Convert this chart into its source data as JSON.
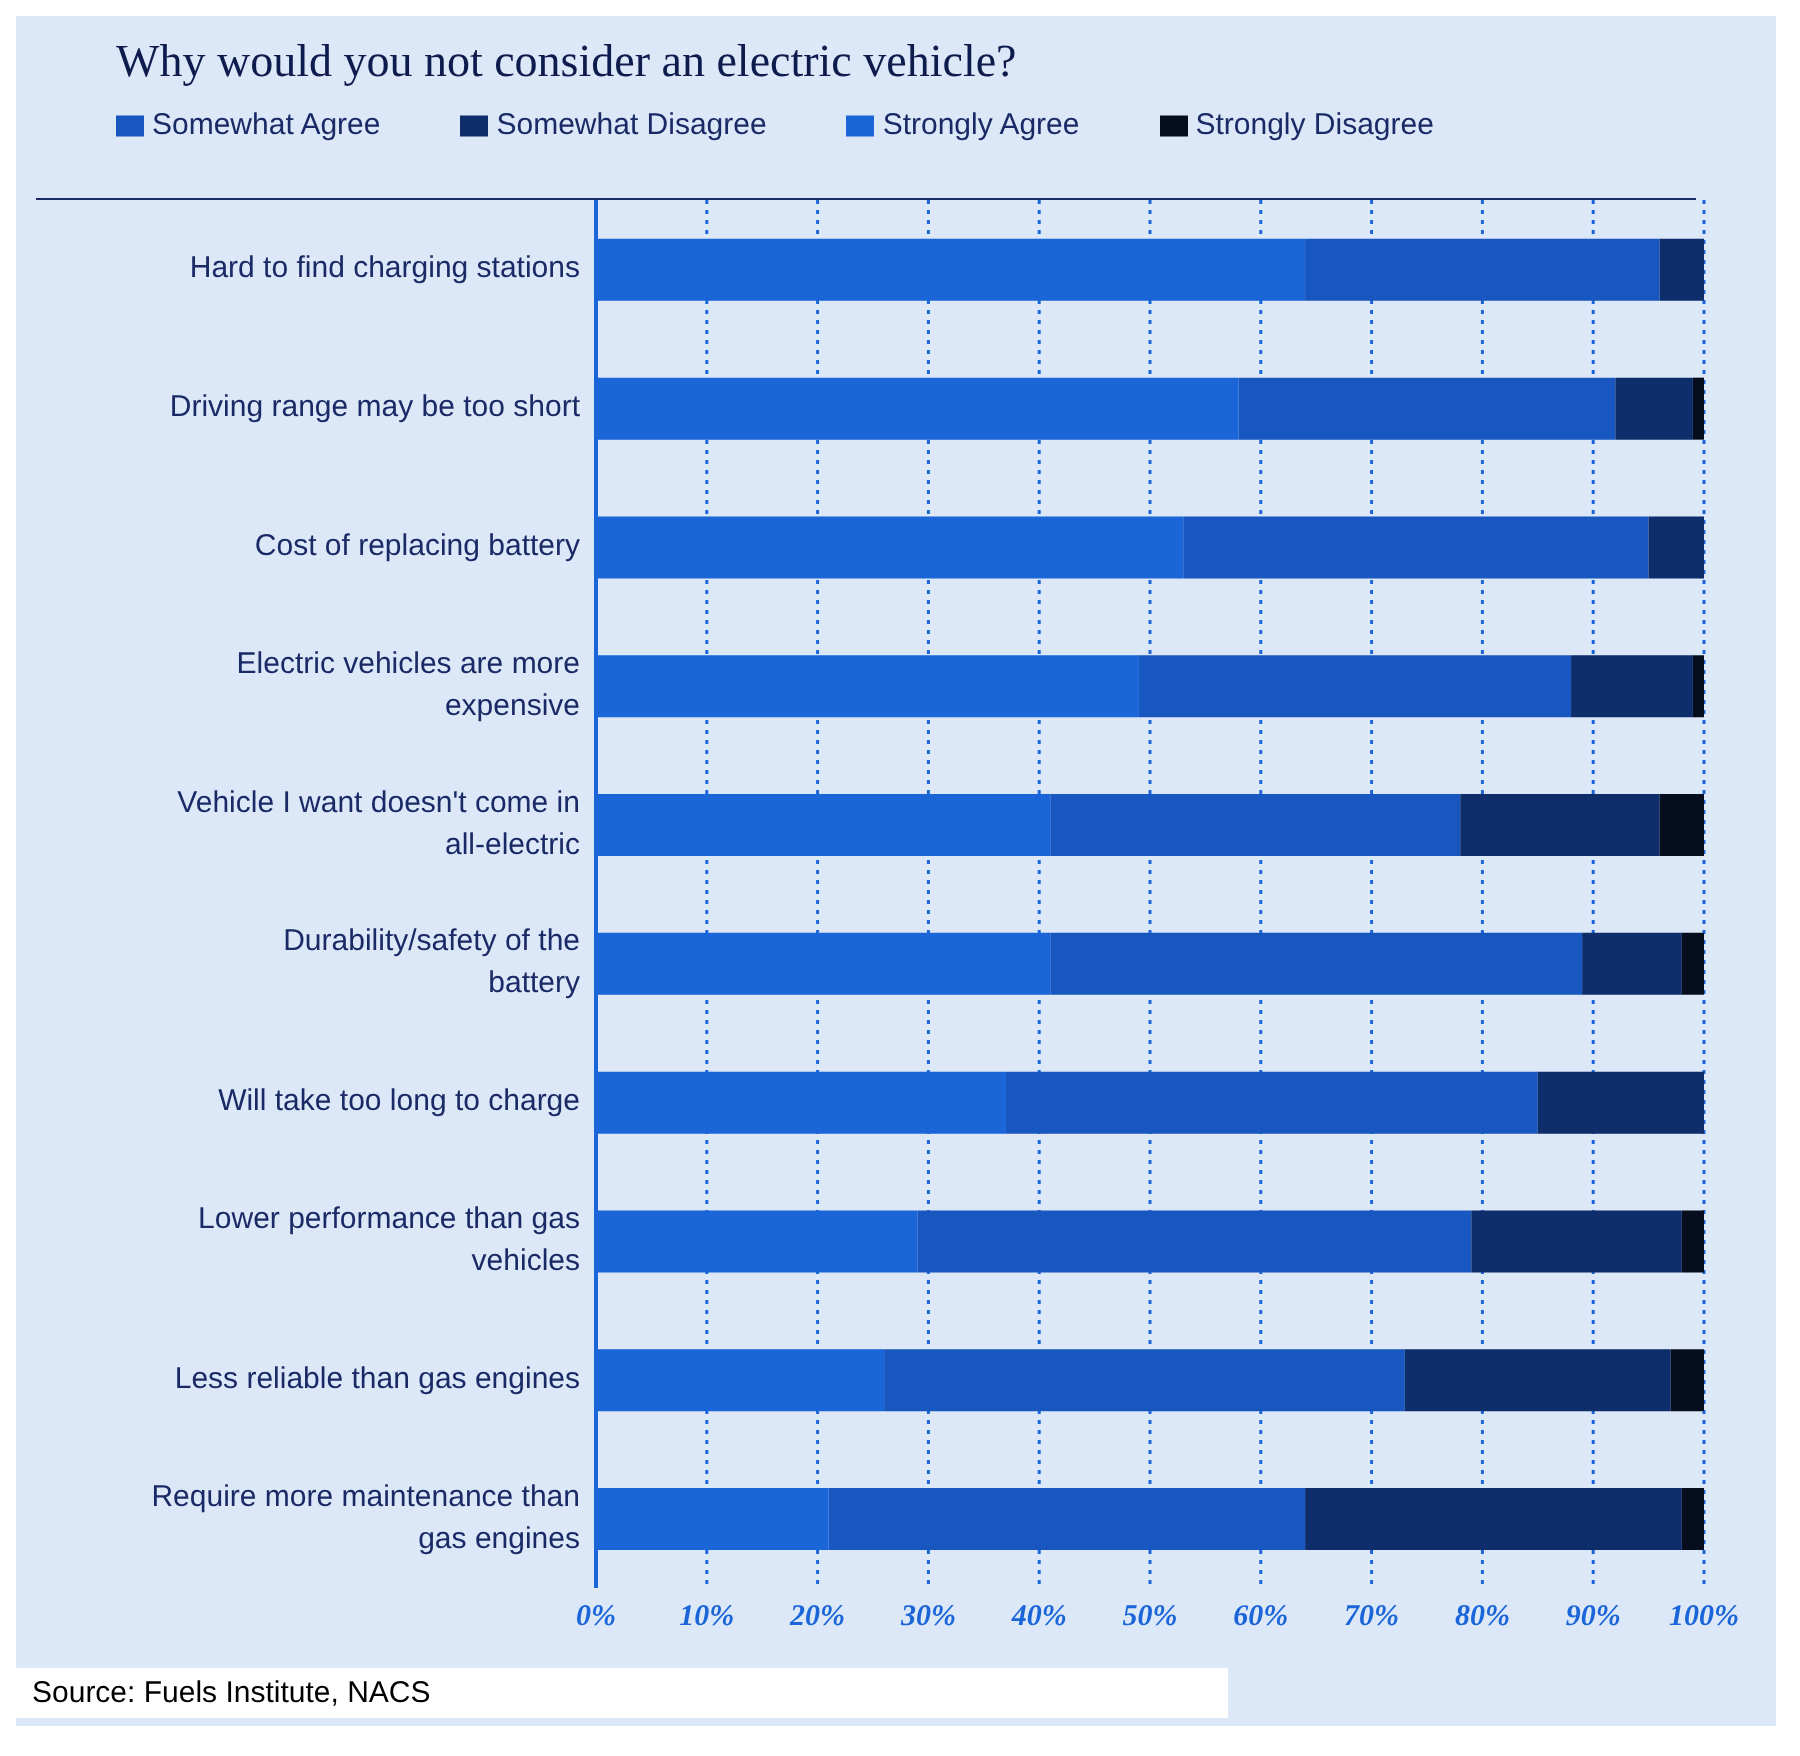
{
  "chart_data": {
    "type": "bar",
    "orientation": "horizontal",
    "stacked": true,
    "title": "Why would you not consider an electric vehicle?",
    "categories": [
      "Hard to find charging stations",
      "Driving range may be too short",
      "Cost of replacing battery",
      "Electric vehicles are more expensive",
      "Vehicle I want doesn't come in all-electric",
      "Durability/safety of the battery",
      "Will take too long to charge",
      "Lower performance than gas vehicles",
      "Less reliable than gas engines",
      "Require more maintenance than gas engines"
    ],
    "series": [
      {
        "name": "Strongly Agree",
        "color": "#1a66d9",
        "values": [
          64,
          58,
          53,
          49,
          41,
          41,
          37,
          29,
          26,
          21
        ]
      },
      {
        "name": "Somewhat Agree",
        "color": "#1857bf",
        "values": [
          32,
          34,
          42,
          39,
          37,
          48,
          48,
          50,
          47,
          43
        ]
      },
      {
        "name": "Somewhat Disagree",
        "color": "#0e2d6b",
        "values": [
          4,
          7,
          5,
          11,
          18,
          9,
          15,
          19,
          24,
          34
        ]
      },
      {
        "name": "Strongly Disagree",
        "color": "#050d1f",
        "values": [
          0,
          1,
          0,
          1,
          4,
          2,
          0,
          2,
          3,
          2
        ]
      }
    ],
    "xlim": [
      0,
      100
    ],
    "xticks": [
      {
        "value": 0,
        "label": "0%"
      },
      {
        "value": 10,
        "label": "10%"
      },
      {
        "value": 20,
        "label": "20%"
      },
      {
        "value": 30,
        "label": "30%"
      },
      {
        "value": 40,
        "label": "40%"
      },
      {
        "value": 50,
        "label": "50%"
      },
      {
        "value": 60,
        "label": "60%"
      },
      {
        "value": 70,
        "label": "70%"
      },
      {
        "value": 80,
        "label": "80%"
      },
      {
        "value": 90,
        "label": "90%"
      },
      {
        "value": 100,
        "label": "100%"
      }
    ],
    "grid": "x",
    "legend": "top left",
    "annotations": [
      "Source: Fuels Institute, NACS"
    ]
  }
}
